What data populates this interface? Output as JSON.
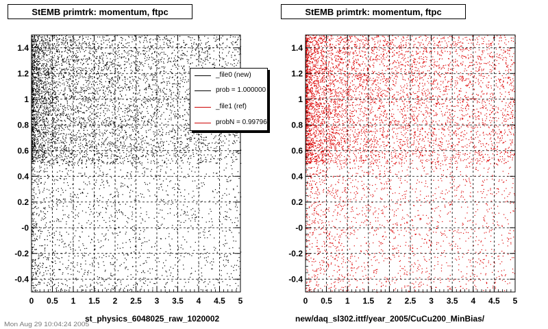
{
  "chart_data": [
    {
      "type": "scatter",
      "title": "StEMB primtrk: momentum, ftpc",
      "xlabel": "st_physics_6048025_raw_1020002",
      "ylabel": "",
      "xlim": [
        0,
        5
      ],
      "ylim": [
        -0.5,
        1.5
      ],
      "x_ticks": [
        "0",
        "0.5",
        "1",
        "1.5",
        "2",
        "2.5",
        "3",
        "3.5",
        "4",
        "4.5",
        "5"
      ],
      "y_ticks": [
        "-0.4",
        "-0.2",
        "-0",
        "0.2",
        "0.4",
        "0.6",
        "0.8",
        "1",
        "1.2",
        "1.4"
      ],
      "grid": true,
      "marker_color": "#000000",
      "density_regions": [
        {
          "x": [
            0,
            5
          ],
          "y": [
            0.5,
            1.5
          ],
          "density": "high, decreasing with x"
        },
        {
          "x": [
            0,
            5
          ],
          "y": [
            -0.5,
            0.5
          ],
          "density": "low"
        }
      ],
      "legend": {
        "placement": "top-right",
        "entries": [
          {
            "label": "_file0 (new)",
            "color": "#000000"
          },
          {
            "label": "prob = 1.000000",
            "color": "#000000"
          },
          {
            "label": "_file1 (ref)",
            "color": "#cc0000"
          },
          {
            "label": "probN = 0.997960",
            "color": "#cc0000"
          }
        ]
      }
    },
    {
      "type": "scatter",
      "title": "StEMB primtrk: momentum, ftpc",
      "xlabel": "new/daq_sl302.ittf/year_2005/CuCu200_MinBias/",
      "ylabel": "",
      "xlim": [
        0,
        5
      ],
      "ylim": [
        -0.5,
        1.5
      ],
      "x_ticks": [
        "0",
        "0.5",
        "1",
        "1.5",
        "2",
        "2.5",
        "3",
        "3.5",
        "4",
        "4.5",
        "5"
      ],
      "y_ticks": [
        "-0.4",
        "-0.2",
        "-0",
        "0.2",
        "0.4",
        "0.6",
        "0.8",
        "1",
        "1.2",
        "1.4"
      ],
      "grid": true,
      "marker_color": "#dd0000",
      "density_regions": [
        {
          "x": [
            0,
            5
          ],
          "y": [
            0.5,
            1.5
          ],
          "density": "high, decreasing with x"
        },
        {
          "x": [
            0,
            5
          ],
          "y": [
            -0.5,
            0.5
          ],
          "density": "low"
        }
      ]
    }
  ],
  "footer": {
    "timestamp": "Mon Aug 29 10:04:24 2005"
  }
}
